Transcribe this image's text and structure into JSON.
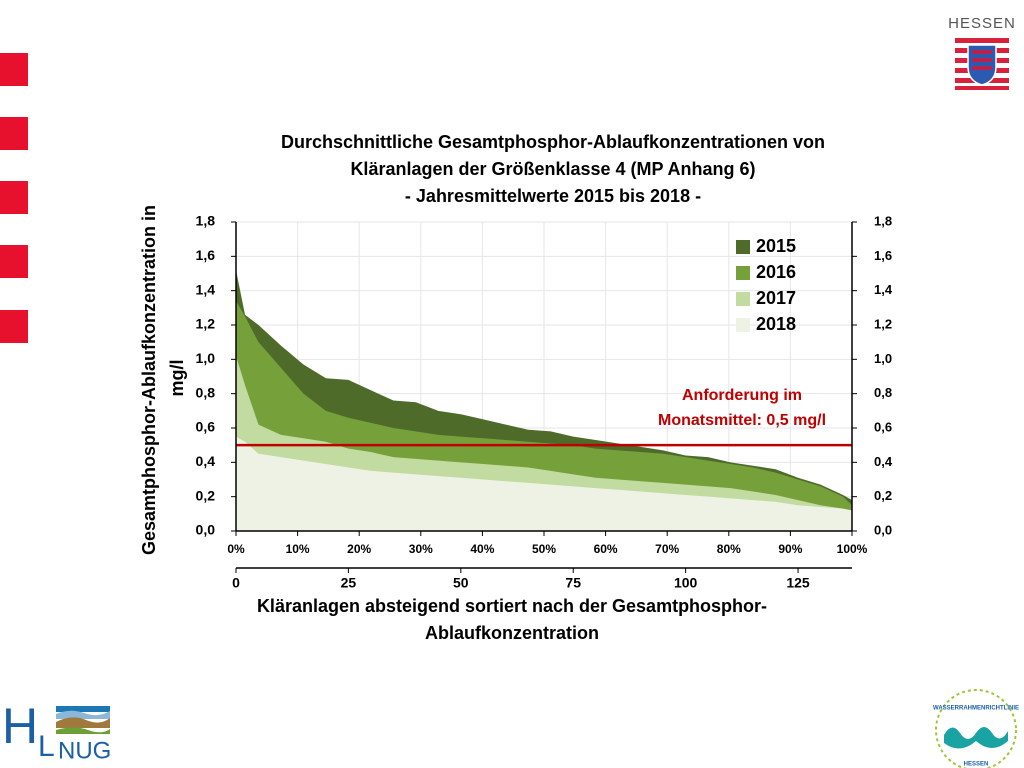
{
  "slide": {
    "brand": "HESSEN",
    "logo_left": [
      "H",
      "L",
      "NUG"
    ],
    "logo_right": [
      "WASSERRAHMENRICHTLINIE",
      "HESSEN"
    ]
  },
  "chart_data": {
    "type": "area",
    "title": [
      "Durchschnittliche Gesamtphosphor-Ablaufkonzentrationen von",
      "Kläranlagen der Größenklasse 4 (MP Anhang 6)",
      "- Jahresmittelwerte 2015 bis 2018 -"
    ],
    "y_label": [
      "Gesamtphosphor-Ablaufkonzentration in",
      "mg/l"
    ],
    "x_label": [
      "Kläranlagen absteigend sortiert nach der Gesamtphosphor-",
      "Ablaufkonzentration"
    ],
    "x": [
      0,
      2,
      5,
      10,
      15,
      20,
      25,
      30,
      35,
      40,
      45,
      50,
      55,
      60,
      65,
      70,
      75,
      80,
      85,
      90,
      95,
      100,
      105,
      110,
      115,
      120,
      125,
      130,
      135,
      137
    ],
    "series": [
      {
        "name": "2015",
        "color": "#4e6b2a",
        "values": [
          1.52,
          1.26,
          1.2,
          1.08,
          0.97,
          0.89,
          0.88,
          0.82,
          0.76,
          0.75,
          0.7,
          0.68,
          0.65,
          0.62,
          0.59,
          0.58,
          0.55,
          0.53,
          0.51,
          0.49,
          0.47,
          0.44,
          0.43,
          0.4,
          0.38,
          0.36,
          0.31,
          0.27,
          0.21,
          0.18
        ]
      },
      {
        "name": "2016",
        "color": "#76a03a",
        "values": [
          1.34,
          1.25,
          1.1,
          0.95,
          0.8,
          0.7,
          0.66,
          0.63,
          0.6,
          0.58,
          0.56,
          0.55,
          0.54,
          0.53,
          0.52,
          0.51,
          0.5,
          0.48,
          0.47,
          0.46,
          0.45,
          0.43,
          0.41,
          0.39,
          0.37,
          0.34,
          0.3,
          0.26,
          0.2,
          0.15
        ]
      },
      {
        "name": "2017",
        "color": "#c2dba0",
        "values": [
          1.02,
          0.85,
          0.62,
          0.56,
          0.54,
          0.52,
          0.48,
          0.46,
          0.43,
          0.42,
          0.41,
          0.4,
          0.39,
          0.38,
          0.37,
          0.35,
          0.33,
          0.31,
          0.3,
          0.29,
          0.28,
          0.27,
          0.26,
          0.25,
          0.23,
          0.21,
          0.18,
          0.15,
          0.13,
          0.1
        ]
      },
      {
        "name": "2018",
        "color": "#eef2e4",
        "values": [
          0.55,
          0.52,
          0.45,
          0.43,
          0.41,
          0.39,
          0.37,
          0.35,
          0.34,
          0.33,
          0.32,
          0.31,
          0.3,
          0.29,
          0.28,
          0.27,
          0.26,
          0.25,
          0.24,
          0.23,
          0.22,
          0.21,
          0.2,
          0.19,
          0.18,
          0.17,
          0.15,
          0.14,
          0.13,
          0.12
        ]
      }
    ],
    "xlim": [
      0,
      137
    ],
    "xticks": [
      0,
      25,
      50,
      75,
      100,
      125
    ],
    "x2lim": [
      0,
      100
    ],
    "x2ticks": [
      {
        "value": 0,
        "label": "0%"
      },
      {
        "value": 10,
        "label": "10%"
      },
      {
        "value": 20,
        "label": "20%"
      },
      {
        "value": 30,
        "label": "30%"
      },
      {
        "value": 40,
        "label": "40%"
      },
      {
        "value": 50,
        "label": "50%"
      },
      {
        "value": 60,
        "label": "60%"
      },
      {
        "value": 70,
        "label": "70%"
      },
      {
        "value": 80,
        "label": "80%"
      },
      {
        "value": 90,
        "label": "90%"
      },
      {
        "value": 100,
        "label": "100%"
      }
    ],
    "ylim": [
      0,
      1.8
    ],
    "yticks": [
      {
        "value": 0,
        "label": "0,0"
      },
      {
        "value": 0.2,
        "label": "0,2"
      },
      {
        "value": 0.4,
        "label": "0,4"
      },
      {
        "value": 0.6,
        "label": "0,6"
      },
      {
        "value": 0.8,
        "label": "0,8"
      },
      {
        "value": 1.0,
        "label": "1,0"
      },
      {
        "value": 1.2,
        "label": "1,2"
      },
      {
        "value": 1.4,
        "label": "1,4"
      },
      {
        "value": 1.6,
        "label": "1,6"
      },
      {
        "value": 1.8,
        "label": "1,8"
      }
    ],
    "y2lim": [
      0,
      1.8
    ],
    "y2ticks": [
      {
        "value": 0,
        "label": "0,0"
      },
      {
        "value": 0.2,
        "label": "0,2"
      },
      {
        "value": 0.4,
        "label": "0,4"
      },
      {
        "value": 0.6,
        "label": "0,6"
      },
      {
        "value": 0.8,
        "label": "0,8"
      },
      {
        "value": 1.0,
        "label": "1,0"
      },
      {
        "value": 1.2,
        "label": "1,2"
      },
      {
        "value": 1.4,
        "label": "1,4"
      },
      {
        "value": 1.6,
        "label": "1,6"
      },
      {
        "value": 1.8,
        "label": "1,8"
      }
    ],
    "grid": true,
    "legend": "top-right",
    "reference_line": {
      "value": 0.5,
      "color": "#c00000",
      "label": [
        "Anforderung im",
        "Monatsmittel: 0,5 mg/l"
      ]
    }
  }
}
